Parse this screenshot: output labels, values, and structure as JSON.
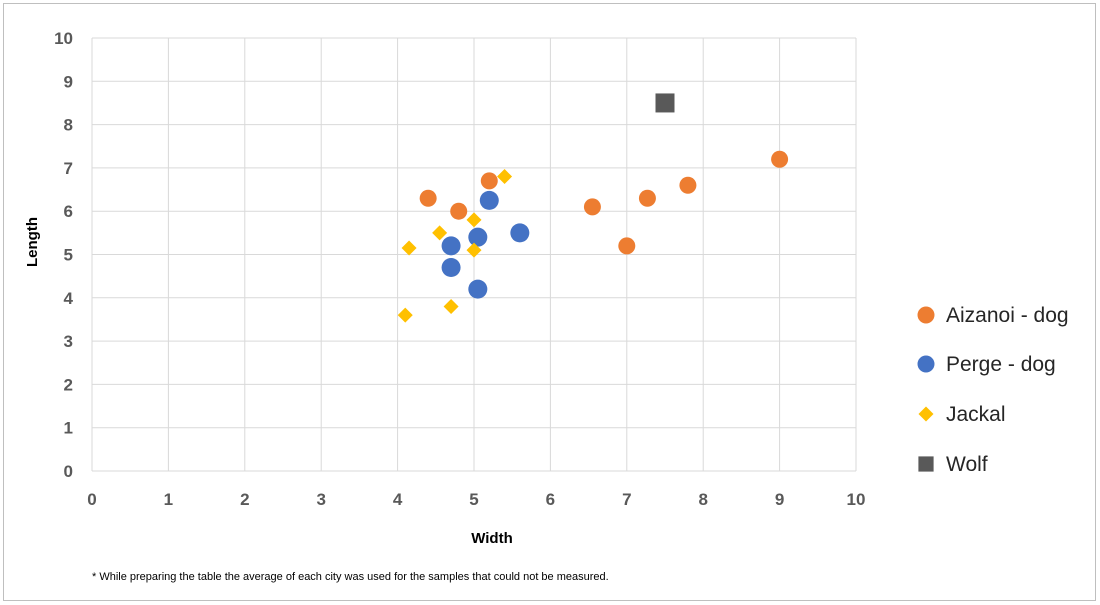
{
  "chart_data": {
    "type": "scatter",
    "title": "",
    "xlabel": "Width",
    "ylabel": "Length",
    "xlim": [
      0,
      10
    ],
    "ylim": [
      0,
      10
    ],
    "xticks": [
      "0",
      "1",
      "2",
      "3",
      "4",
      "5",
      "6",
      "7",
      "8",
      "9",
      "10"
    ],
    "yticks": [
      "0",
      "1",
      "2",
      "3",
      "4",
      "5",
      "6",
      "7",
      "8",
      "9",
      "10"
    ],
    "grid": true,
    "legend_position": "right",
    "series": [
      {
        "name": "Aizanoi - dog",
        "marker": "circle",
        "color": "#ED7D31",
        "points": [
          [
            4.4,
            6.3
          ],
          [
            4.8,
            6.0
          ],
          [
            5.2,
            6.7
          ],
          [
            6.55,
            6.1
          ],
          [
            7.0,
            5.2
          ],
          [
            7.27,
            6.3
          ],
          [
            7.8,
            6.6
          ],
          [
            9.0,
            7.2
          ]
        ]
      },
      {
        "name": "Perge - dog",
        "marker": "circle-large",
        "color": "#4472C4",
        "points": [
          [
            4.7,
            5.2
          ],
          [
            4.7,
            4.7
          ],
          [
            5.05,
            5.4
          ],
          [
            5.05,
            4.2
          ],
          [
            5.2,
            6.25
          ],
          [
            5.6,
            5.5
          ]
        ]
      },
      {
        "name": "Jackal",
        "marker": "diamond",
        "color": "#FFC000",
        "points": [
          [
            4.1,
            3.6
          ],
          [
            4.15,
            5.15
          ],
          [
            4.55,
            5.5
          ],
          [
            4.7,
            3.8
          ],
          [
            5.0,
            5.8
          ],
          [
            5.0,
            5.1
          ],
          [
            5.4,
            6.8
          ]
        ]
      },
      {
        "name": "Wolf",
        "marker": "square",
        "color": "#595959",
        "points": [
          [
            7.5,
            8.5
          ]
        ]
      }
    ]
  },
  "footnote": "* While preparing the table the average of each city was used for the samples that could not be measured."
}
